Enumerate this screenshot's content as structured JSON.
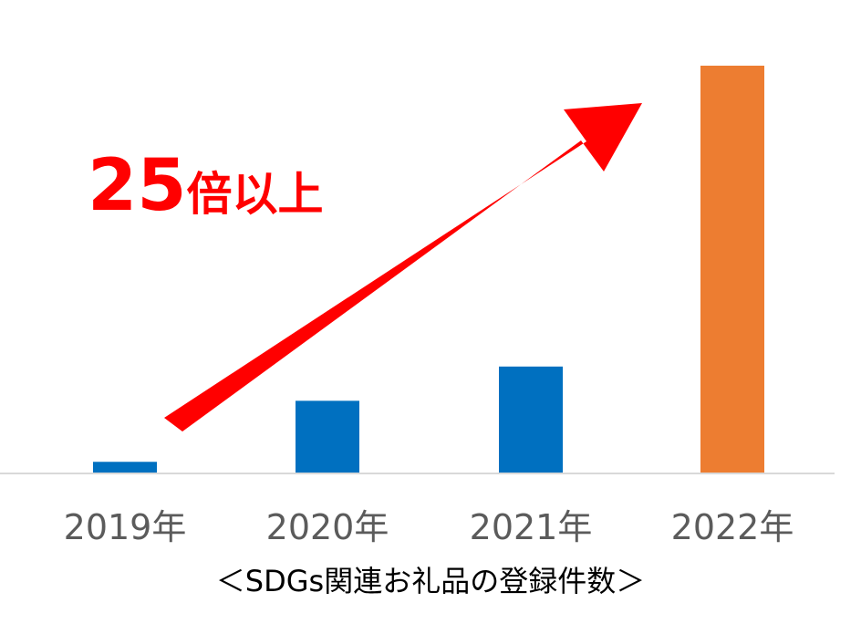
{
  "chart_data": {
    "type": "bar",
    "categories": [
      "2019年",
      "2020年",
      "2021年",
      "2022年"
    ],
    "values": [
      1,
      6.7,
      9.9,
      38
    ],
    "ylim": [
      0,
      38
    ],
    "colors": [
      "#0070c0",
      "#0070c0",
      "#0070c0",
      "#ed7d31"
    ],
    "title": "",
    "xlabel": "",
    "ylabel": "",
    "grid": false,
    "caption": "＜SDGs関連お礼品の登録件数＞",
    "annotation": {
      "number": "25",
      "suffix": "倍以上",
      "arrow_color": "#ff0000"
    }
  }
}
